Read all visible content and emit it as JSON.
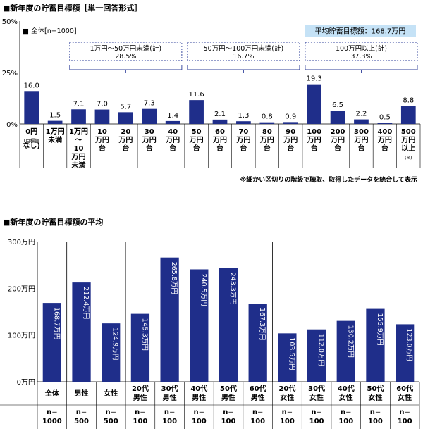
{
  "chart_data": [
    {
      "type": "bar",
      "title": "■新年度の貯蓄目標額［単一回答形式］",
      "legend": "■ 全体[n=1000]",
      "yticks": [
        "0%",
        "25%",
        "50%"
      ],
      "ylim": [
        0,
        50
      ],
      "categories": [
        [
          "0円",
          "(目標額",
          "なし)"
        ],
        [
          "1万円",
          "未満"
        ],
        [
          "1万円",
          "～",
          "10",
          "万円",
          "未満"
        ],
        [
          "10",
          "万円",
          "台"
        ],
        [
          "20",
          "万円",
          "台"
        ],
        [
          "30",
          "万円",
          "台"
        ],
        [
          "40",
          "万円",
          "台"
        ],
        [
          "50",
          "万円",
          "台"
        ],
        [
          "60",
          "万円",
          "台"
        ],
        [
          "70",
          "万円",
          "台"
        ],
        [
          "80",
          "万円",
          "台"
        ],
        [
          "90",
          "万円",
          "台"
        ],
        [
          "100",
          "万円",
          "台"
        ],
        [
          "200",
          "万円",
          "台"
        ],
        [
          "300",
          "万円",
          "台"
        ],
        [
          "400",
          "万円",
          "台"
        ],
        [
          "500",
          "万円",
          "以上",
          "(※)"
        ]
      ],
      "values": [
        16.0,
        1.5,
        7.1,
        7.0,
        5.7,
        7.3,
        1.4,
        11.6,
        2.1,
        1.3,
        0.8,
        0.9,
        19.3,
        6.5,
        2.2,
        0.5,
        8.8
      ],
      "value_labels": [
        "16.0",
        "1.5",
        "7.1",
        "7.0",
        "5.7",
        "7.3",
        "1.4",
        "11.6",
        "2.1",
        "1.3",
        "0.8",
        "0.9",
        "19.3",
        "6.5",
        "2.2",
        "0.5",
        "8.8"
      ],
      "groups": [
        {
          "label": "1万円～50万円未満(計)",
          "value": "28.5%",
          "from": 2,
          "to": 6
        },
        {
          "label": "50万円～100万円未満(計)",
          "value": "16.7%",
          "from": 7,
          "to": 11
        },
        {
          "label": "100万円以上(計)",
          "value": "37.3%",
          "from": 12,
          "to": 16
        }
      ],
      "average_box": "平均貯蓄目標額：168.7万円",
      "footnote": "※細かい区切りの階級で聴取、取得したデータを統合して表示",
      "bar_color": "#1f2e8a",
      "box_color": "#c5e2f6",
      "group_border_color": "#2e3f9a"
    },
    {
      "type": "bar",
      "title": "■新年度の貯蓄目標額の平均",
      "yticks": [
        "0万円",
        "100万円",
        "200万円",
        "300万円"
      ],
      "ylim": [
        0,
        300
      ],
      "categories": [
        [
          "全体"
        ],
        [
          "男性"
        ],
        [
          "女性"
        ],
        [
          "20代",
          "男性"
        ],
        [
          "30代",
          "男性"
        ],
        [
          "40代",
          "男性"
        ],
        [
          "50代",
          "男性"
        ],
        [
          "60代",
          "男性"
        ],
        [
          "20代",
          "女性"
        ],
        [
          "30代",
          "女性"
        ],
        [
          "40代",
          "女性"
        ],
        [
          "50代",
          "女性"
        ],
        [
          "60代",
          "女性"
        ]
      ],
      "values": [
        168.7,
        212.4,
        124.9,
        145.3,
        265.8,
        240.5,
        243.3,
        167.3,
        103.5,
        112.0,
        130.2,
        155.9,
        123.0
      ],
      "value_labels": [
        "168.7万円",
        "212.4万円",
        "124.9万円",
        "145.3万円",
        "265.8万円",
        "240.5万円",
        "243.3万円",
        "167.3万円",
        "103.5万円",
        "112.0万円",
        "130.2万円",
        "155.9万円",
        "123.0万円"
      ],
      "n_labels": [
        [
          "n=",
          "1000"
        ],
        [
          "n=",
          "500"
        ],
        [
          "n=",
          "500"
        ],
        [
          "n=",
          "100"
        ],
        [
          "n=",
          "100"
        ],
        [
          "n=",
          "100"
        ],
        [
          "n=",
          "100"
        ],
        [
          "n=",
          "100"
        ],
        [
          "n=",
          "100"
        ],
        [
          "n=",
          "100"
        ],
        [
          "n=",
          "100"
        ],
        [
          "n=",
          "100"
        ],
        [
          "n=",
          "100"
        ]
      ],
      "separators_after": [
        0,
        2,
        7
      ],
      "bar_color": "#1f2e8a"
    }
  ]
}
